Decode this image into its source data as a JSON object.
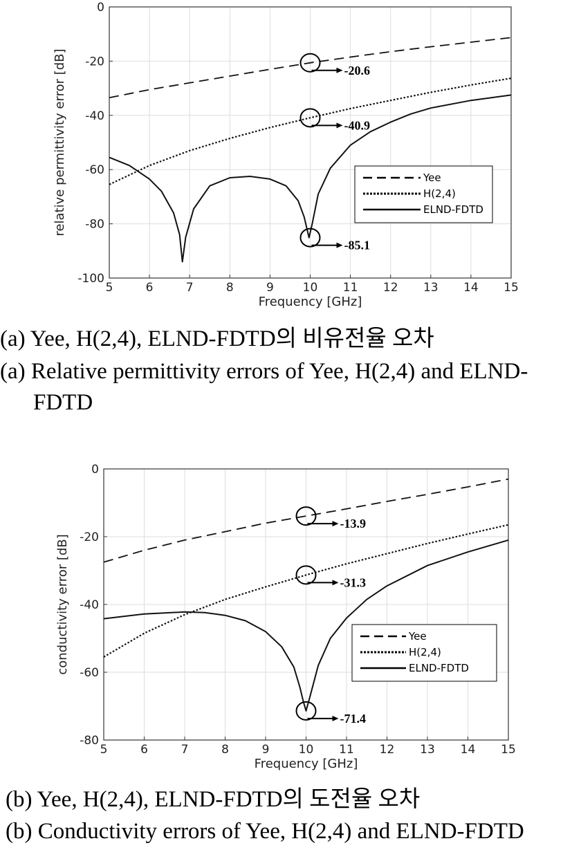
{
  "chart_data": [
    {
      "type": "line",
      "title": "",
      "xlabel": "Frequency [GHz]",
      "ylabel": "relative permittivity error [dB]",
      "xlim": [
        5,
        15
      ],
      "ylim": [
        -100,
        0
      ],
      "x_ticks": [
        "5",
        "6",
        "7",
        "8",
        "9",
        "10",
        "11",
        "12",
        "13",
        "14",
        "15"
      ],
      "y_ticks": [
        "-100",
        "-80",
        "-60",
        "-40",
        "-20",
        "0"
      ],
      "grid": true,
      "legend_position": "center-right",
      "series": [
        {
          "name": "Yee",
          "style": "dashed",
          "x": [
            5,
            6,
            7,
            8,
            9,
            10,
            11,
            12,
            13,
            14,
            15
          ],
          "y": [
            -33.5,
            -30.5,
            -28,
            -25.5,
            -23,
            -20.6,
            -18.5,
            -16.5,
            -14.7,
            -13,
            -11.3
          ]
        },
        {
          "name": "H(2,4)",
          "style": "dotted",
          "x": [
            5,
            6,
            7,
            8,
            9,
            10,
            11,
            12,
            13,
            14,
            15
          ],
          "y": [
            -65.5,
            -58.5,
            -53,
            -48.5,
            -44.5,
            -40.9,
            -37.5,
            -34.5,
            -31.5,
            -28.8,
            -26.3
          ]
        },
        {
          "name": "ELND-FDTD",
          "style": "solid",
          "x": [
            5,
            5.5,
            6,
            6.3,
            6.6,
            6.75,
            6.82,
            6.9,
            7.1,
            7.5,
            8,
            8.5,
            9,
            9.4,
            9.7,
            9.85,
            9.92,
            9.97,
            10.05,
            10.2,
            10.5,
            11,
            11.5,
            12,
            12.5,
            13,
            14,
            15
          ],
          "y": [
            -55.5,
            -58.5,
            -63.5,
            -68,
            -76,
            -84,
            -94,
            -85,
            -74.5,
            -66,
            -63,
            -62.5,
            -63.5,
            -66,
            -71.5,
            -77.5,
            -82,
            -85.1,
            -80,
            -69,
            -59.5,
            -51,
            -46,
            -42.5,
            -39.5,
            -37.3,
            -34.5,
            -32.5
          ]
        }
      ],
      "annotations": [
        {
          "x": 10,
          "y": -20.6,
          "label": "-20.6"
        },
        {
          "x": 10,
          "y": -40.9,
          "label": "-40.9"
        },
        {
          "x": 10,
          "y": -85.1,
          "label": "-85.1"
        }
      ]
    },
    {
      "type": "line",
      "title": "",
      "xlabel": "Frequency [GHz]",
      "ylabel": "conductivity error [dB]",
      "xlim": [
        5,
        15
      ],
      "ylim": [
        -80,
        0
      ],
      "x_ticks": [
        "5",
        "6",
        "7",
        "8",
        "9",
        "10",
        "11",
        "12",
        "13",
        "14",
        "15"
      ],
      "y_ticks": [
        "-80",
        "-60",
        "-40",
        "-20",
        "0"
      ],
      "grid": true,
      "legend_position": "center-right",
      "series": [
        {
          "name": "Yee",
          "style": "dashed",
          "x": [
            5,
            6,
            7,
            8,
            9,
            10,
            11,
            12,
            13,
            14,
            15
          ],
          "y": [
            -27.5,
            -24,
            -21,
            -18.5,
            -16,
            -13.9,
            -11.8,
            -9.6,
            -7.5,
            -5.3,
            -3
          ]
        },
        {
          "name": "H(2,4)",
          "style": "dotted",
          "x": [
            5,
            6,
            7,
            8,
            9,
            10,
            11,
            12,
            13,
            14,
            15
          ],
          "y": [
            -55.5,
            -48.5,
            -43,
            -38.5,
            -34.8,
            -31.3,
            -28,
            -25,
            -22,
            -19.2,
            -16.5
          ]
        },
        {
          "name": "ELND-FDTD",
          "style": "solid",
          "x": [
            5,
            6,
            7,
            7.5,
            8,
            8.5,
            9,
            9.4,
            9.7,
            9.85,
            9.93,
            10,
            10.1,
            10.3,
            10.6,
            11,
            11.5,
            12,
            13,
            14,
            15
          ],
          "y": [
            -44.2,
            -42.8,
            -42.2,
            -42.4,
            -43.2,
            -44.8,
            -48,
            -52.5,
            -58.5,
            -64.5,
            -68.5,
            -71.4,
            -67,
            -58,
            -50,
            -44,
            -38.5,
            -34.5,
            -28.5,
            -24.5,
            -21
          ]
        }
      ],
      "annotations": [
        {
          "x": 10,
          "y": -13.9,
          "label": "-13.9"
        },
        {
          "x": 10,
          "y": -31.3,
          "label": "-31.3"
        },
        {
          "x": 10,
          "y": -71.4,
          "label": "-71.4"
        }
      ]
    }
  ],
  "captions": {
    "a_korean": "(a) Yee, H(2,4), ELND-FDTD의 비유전율 오차",
    "a_english_line1": "(a) Relative permittivity errors of Yee, H(2,4) and ELND-",
    "a_english_line2": "FDTD",
    "b_korean": "(b) Yee, H(2,4), ELND-FDTD의 도전율 오차",
    "b_english": "(b) Conductivity errors of Yee, H(2,4) and ELND-FDTD"
  }
}
